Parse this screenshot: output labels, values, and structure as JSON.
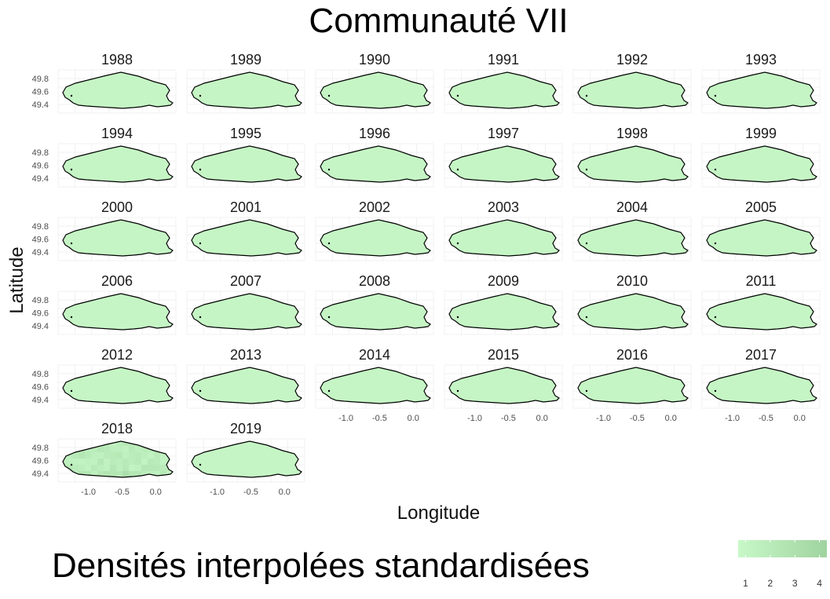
{
  "chart_data": {
    "type": "heatmap",
    "title": "Communauté VII",
    "xlabel": "Longitude",
    "ylabel": "Latitude",
    "facets": [
      "1988",
      "1989",
      "1990",
      "1991",
      "1992",
      "1993",
      "1994",
      "1995",
      "1996",
      "1997",
      "1998",
      "1999",
      "2000",
      "2001",
      "2002",
      "2003",
      "2004",
      "2005",
      "2006",
      "2007",
      "2008",
      "2009",
      "2010",
      "2011",
      "2012",
      "2013",
      "2014",
      "2015",
      "2016",
      "2017",
      "2018",
      "2019"
    ],
    "x_ticks": [
      "-1.0",
      "-0.5",
      "0.0"
    ],
    "x_tick_values": [
      -1.0,
      -0.5,
      0.0
    ],
    "y_ticks": [
      "49.8",
      "49.6",
      "49.4"
    ],
    "y_tick_values": [
      49.8,
      49.6,
      49.4
    ],
    "xlim": [
      -1.45,
      0.3
    ],
    "ylim": [
      49.27,
      49.93
    ],
    "grid": true,
    "density_level": {
      "default": 1,
      "2018": 1.6
    },
    "legend": {
      "title": "Densités interpolées standardisées",
      "placement": "bottom",
      "breaks": [
        "1",
        "2",
        "3",
        "4"
      ],
      "break_values": [
        1,
        2,
        3,
        4
      ],
      "range": [
        0.7,
        4.3
      ],
      "low_color": "#c8f8c8",
      "high_color": "#9fd39f"
    },
    "colors": {
      "outline": "#000000",
      "grid": "#ebebeb",
      "fill_low": "#c8f8c8",
      "fill_high": "#9fd39f"
    }
  }
}
